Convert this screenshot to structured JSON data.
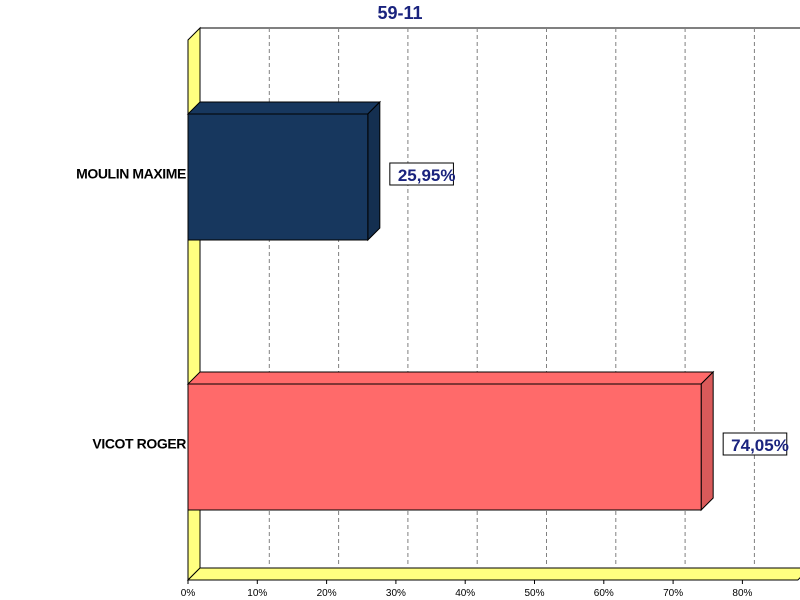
{
  "chart_data": {
    "type": "bar",
    "orientation": "horizontal",
    "title": "59-11",
    "categories": [
      "MOULIN MAXIME",
      "VICOT ROGER"
    ],
    "values": [
      25.95,
      74.05
    ],
    "value_labels": [
      "25,95%",
      "74,05%"
    ],
    "colors": [
      "#17375e",
      "#ff6a6a"
    ],
    "xlim": [
      0,
      88
    ],
    "x_ticks": [
      0,
      10,
      20,
      30,
      40,
      50,
      60,
      70,
      80
    ],
    "x_tick_labels": [
      "0%",
      "10%",
      "20%",
      "30%",
      "40%",
      "50%",
      "60%",
      "70%",
      "80%"
    ],
    "grid": true,
    "three_d": true,
    "wall_color": "#ffff80"
  }
}
